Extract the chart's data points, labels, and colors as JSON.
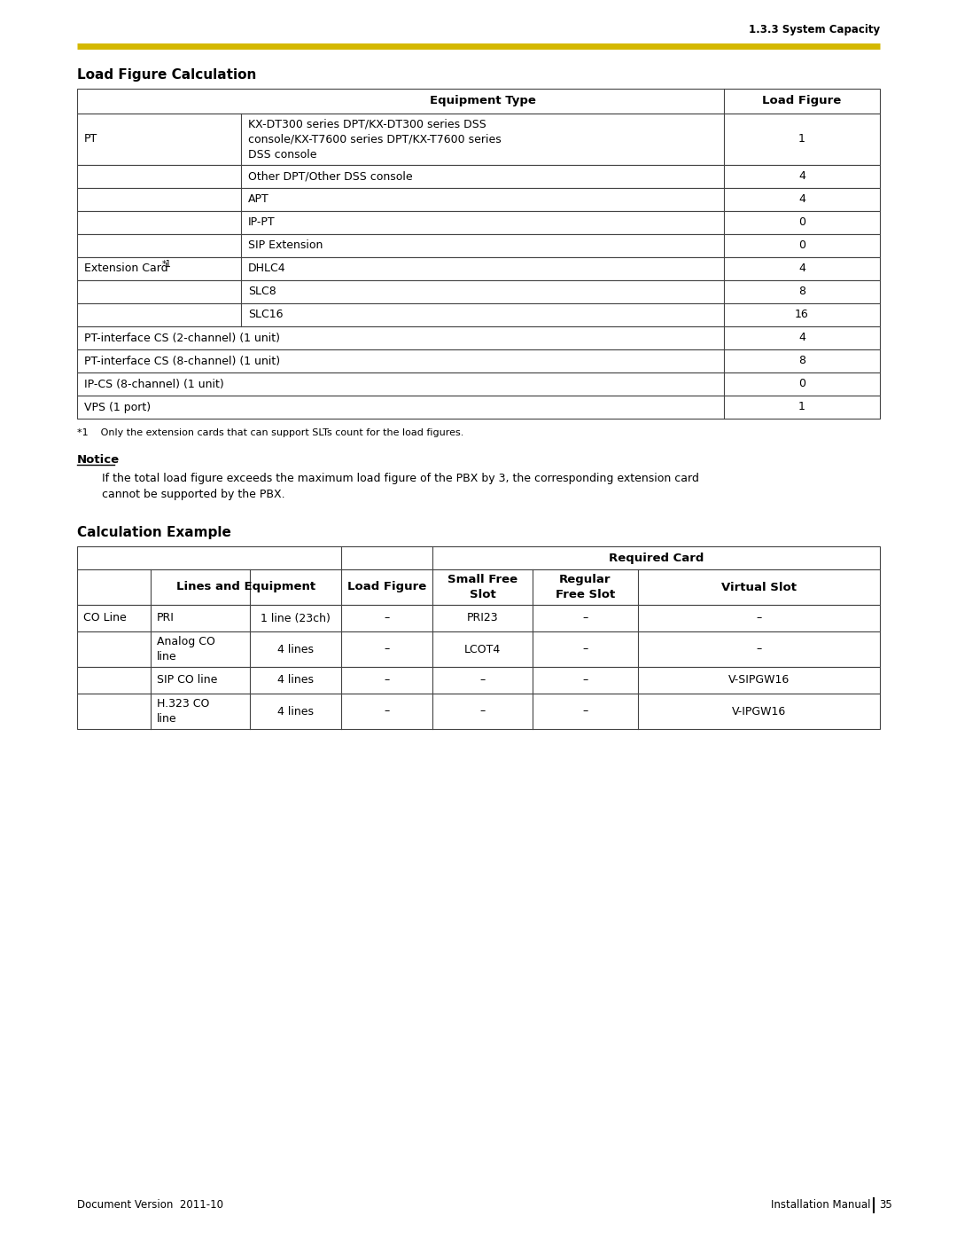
{
  "page_bg": "#ffffff",
  "header_line_color": "#d4b800",
  "header_text": "1.3.3 System Capacity",
  "section1_title": "Load Figure Calculation",
  "section2_title": "Calculation Example",
  "footnote1": "*1    Only the extension cards that can support SLTs count for the load figures.",
  "notice_title": "Notice",
  "notice_text": "If the total load figure exceeds the maximum load figure of the PBX by 3, the corresponding extension card\ncannot be supported by the PBX.",
  "footer_left": "Document Version  2011-10",
  "footer_right": "Installation Manual",
  "footer_page": "35",
  "table_border_color": "#444444",
  "text_color": "#000000"
}
